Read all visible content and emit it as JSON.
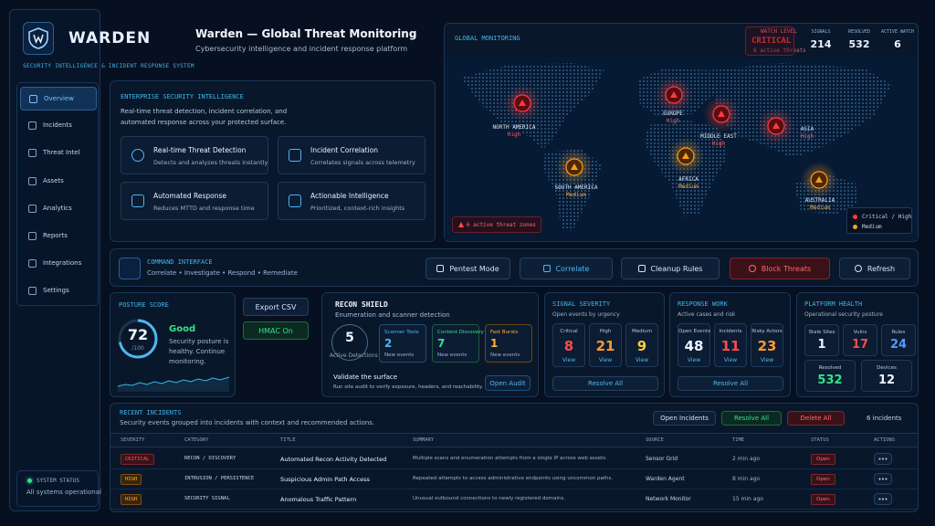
{
  "brand": {
    "name": "WARDEN",
    "tagline": "SECURITY INTELLIGENCE & INCIDENT RESPONSE SYSTEM"
  },
  "header": {
    "title": "Warden — Global Threat Monitoring",
    "subtitle": "Cybersecurity intelligence and incident response platform"
  },
  "nav": [
    "Overview",
    "Incidents",
    "Threat Intel",
    "Assets",
    "Analytics",
    "Reports",
    "Integrations",
    "Settings"
  ],
  "system_status": {
    "label": "SYSTEM STATUS",
    "text": "All systems operational"
  },
  "intel": {
    "title": "ENTERPRISE SECURITY INTELLIGENCE",
    "description": "Real-time threat detection, incident correlation, and automated response across your protected surface.",
    "features": [
      {
        "title": "Real-time Threat Detection",
        "text": "Detects and analyzes threats instantly"
      },
      {
        "title": "Incident Correlation",
        "text": "Correlates signals across telemetry"
      },
      {
        "title": "Automated Response",
        "text": "Reduces MTTD and response time"
      },
      {
        "title": "Actionable Intelligence",
        "text": "Prioritized, context-rich insights"
      }
    ]
  },
  "map": {
    "title": "GLOBAL MONITORING",
    "watch": {
      "label": "WATCH LEVEL",
      "level": "CRITICAL",
      "note": "6 active threats"
    },
    "stats": [
      {
        "label": "SIGNALS",
        "value": 214
      },
      {
        "label": "RESOLVED",
        "value": 532
      },
      {
        "label": "ACTIVE WATCH",
        "value": 6
      }
    ],
    "regions": [
      {
        "name": "NORTH AMERICA",
        "level": "High"
      },
      {
        "name": "EUROPE",
        "level": "High"
      },
      {
        "name": "MIDDLE EAST",
        "level": "High"
      },
      {
        "name": "ASIA",
        "level": "High"
      },
      {
        "name": "AFRICA",
        "level": "Medium"
      },
      {
        "name": "SOUTH AMERICA",
        "level": "Medium"
      },
      {
        "name": "AUSTRALIA",
        "level": "Medium"
      }
    ],
    "alert": "6 active threat zones",
    "legend": [
      "Critical / High",
      "Medium"
    ]
  },
  "command": {
    "title": "COMMAND INTERFACE",
    "steps": "Correlate • Investigate • Respond • Remediate",
    "buttons": [
      "Pentest Mode",
      "Correlate",
      "Cleanup Rules",
      "Block Threats",
      "Refresh"
    ]
  },
  "posture": {
    "title": "POSTURE SCORE",
    "score": 72,
    "max": {
      "value": 100,
      "label": "/100"
    },
    "status": "Good",
    "text": "Security posture is healthy. Continue monitoring.",
    "buttons": [
      "Export CSV",
      "HMAC On"
    ]
  },
  "recon": {
    "title": "RECON SHIELD",
    "subtitle": "Enumeration and scanner detection",
    "total": 5,
    "total_label": "Active Detections",
    "cards": [
      {
        "label": "Scanner Tools",
        "value": 2,
        "note": "New events"
      },
      {
        "label": "Content Discovery",
        "value": 7,
        "note": "New events"
      },
      {
        "label": "Fast Bursts",
        "value": 1,
        "note": "New events"
      }
    ],
    "validate_title": "Validate the surface",
    "validate_text": "Run site audit to verify exposure, headers, and reachability.",
    "button": "Open Audit"
  },
  "severity": {
    "title": "SIGNAL SEVERITY",
    "subtitle": "Open events by urgency",
    "items": [
      {
        "label": "Critical",
        "value": 8,
        "action": "View"
      },
      {
        "label": "High",
        "value": 21,
        "action": "View"
      },
      {
        "label": "Medium",
        "value": 9,
        "action": "View"
      }
    ],
    "button": "Resolve All"
  },
  "response": {
    "title": "RESPONSE WORK",
    "subtitle": "Active cases and risk",
    "items": [
      {
        "label": "Open Events",
        "value": 48,
        "action": "View"
      },
      {
        "label": "Incidents",
        "value": 11,
        "action": "View"
      },
      {
        "label": "Risky Actors",
        "value": 23,
        "action": "View"
      }
    ],
    "button": "Resolve All"
  },
  "health": {
    "title": "PLATFORM HEALTH",
    "subtitle": "Operational security posture",
    "items": [
      {
        "label": "Stale Sites",
        "value": 1
      },
      {
        "label": "Vulns",
        "value": 17
      },
      {
        "label": "Rules",
        "value": 24
      },
      {
        "label": "Resolved",
        "value": 532
      },
      {
        "label": "Devices",
        "value": 12
      }
    ]
  },
  "incidents": {
    "title": "RECENT INCIDENTS",
    "subtitle": "Security events grouped into incidents with context and recommended actions.",
    "buttons": [
      "Open Incidents",
      "Resolve All",
      "Delete All"
    ],
    "count": "6 incidents",
    "columns": [
      "SEVERITY",
      "CATEGORY",
      "TITLE",
      "SUMMARY",
      "SOURCE",
      "TIME",
      "STATUS",
      "ACTIONS"
    ],
    "rows": [
      [
        "CRITICAL",
        "RECON / DISCOVERY",
        "Automated Recon Activity Detected",
        "Multiple scans and enumeration attempts from a single IP across web assets.",
        "Sensor Grid",
        "2 min ago",
        "Open"
      ],
      [
        "HIGH",
        "INTRUSION / PERSISTENCE",
        "Suspicious Admin Path Access",
        "Repeated attempts to access administrative endpoints using uncommon paths.",
        "Warden Agent",
        "8 min ago",
        "Open"
      ],
      [
        "HIGH",
        "SECURITY SIGNAL",
        "Anomalous Traffic Pattern",
        "Unusual outbound connections to newly registered domains.",
        "Network Monitor",
        "15 min ago",
        "Open"
      ]
    ]
  }
}
